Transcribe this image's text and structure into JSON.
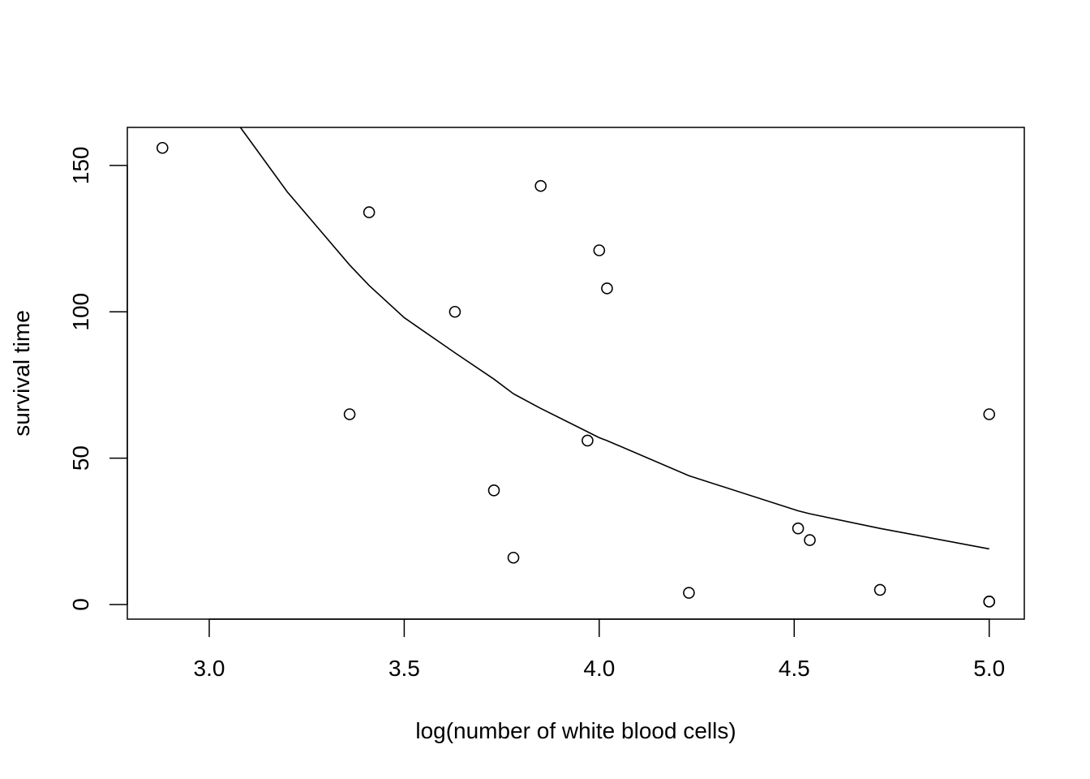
{
  "chart_data": {
    "type": "scatter",
    "title": "",
    "xlabel": "log(number of white blood cells)",
    "ylabel": "survival time",
    "xlim": [
      2.79,
      5.09
    ],
    "ylim": [
      -5,
      163
    ],
    "grid": false,
    "xticks": [
      "3.0",
      "3.5",
      "4.0",
      "4.5",
      "5.0"
    ],
    "yticks": [
      "0",
      "50",
      "100",
      "150"
    ],
    "series": [
      {
        "type": "points",
        "x": [
          2.88,
          3.36,
          3.41,
          3.63,
          3.73,
          3.78,
          3.85,
          3.97,
          4.0,
          4.02,
          4.23,
          4.51,
          4.54,
          4.72,
          5.0,
          5.0,
          5.0
        ],
        "y": [
          156,
          65,
          134,
          100,
          39,
          16,
          143,
          56,
          121,
          108,
          4,
          26,
          22,
          5,
          65,
          1,
          1
        ]
      },
      {
        "type": "line",
        "x": [
          3.0,
          3.08,
          3.2,
          3.36,
          3.41,
          3.5,
          3.63,
          3.73,
          3.78,
          3.85,
          3.97,
          4.0,
          4.02,
          4.23,
          4.51,
          4.54,
          4.72,
          5.0
        ],
        "y": [
          181,
          163,
          141,
          116,
          109,
          98,
          86,
          77,
          72,
          67,
          59,
          57,
          56,
          44,
          32,
          31,
          26,
          19
        ]
      }
    ]
  }
}
